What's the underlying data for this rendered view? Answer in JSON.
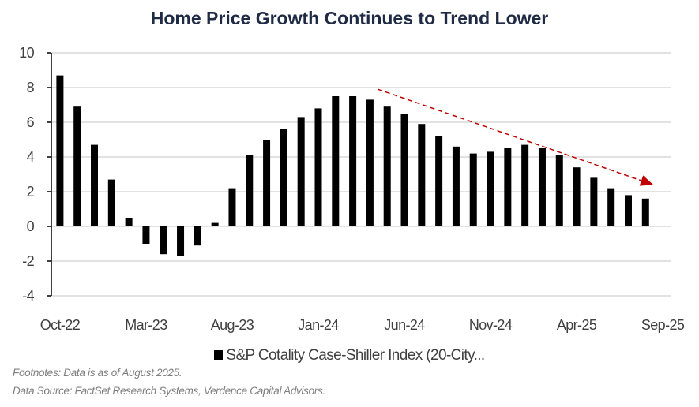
{
  "chart_data": {
    "type": "bar",
    "title": "Home Price Growth Continues to Trend Lower",
    "categories": [
      "Oct-22",
      "Nov-22",
      "Dec-22",
      "Jan-23",
      "Feb-23",
      "Mar-23",
      "Apr-23",
      "May-23",
      "Jun-23",
      "Jul-23",
      "Aug-23",
      "Sep-23",
      "Oct-23",
      "Nov-23",
      "Dec-23",
      "Jan-24",
      "Feb-24",
      "Mar-24",
      "Apr-24",
      "May-24",
      "Jun-24",
      "Jul-24",
      "Aug-24",
      "Sep-24",
      "Oct-24",
      "Nov-24",
      "Dec-24",
      "Jan-25",
      "Feb-25",
      "Mar-25",
      "Apr-25",
      "May-25",
      "Jun-25",
      "Jul-25",
      "Aug-25",
      "Sep-25"
    ],
    "x_tick_labels": [
      "Oct-22",
      "Mar-23",
      "Aug-23",
      "Jan-24",
      "Jun-24",
      "Nov-24",
      "Apr-25",
      "Sep-25"
    ],
    "series": [
      {
        "name": "S&P Cotality Case-Shiller Index (20-City...",
        "color": "#000000",
        "values": [
          8.7,
          6.9,
          4.7,
          2.7,
          0.5,
          -1.0,
          -1.6,
          -1.7,
          -1.1,
          0.2,
          2.2,
          4.1,
          5.0,
          5.6,
          6.3,
          6.8,
          7.5,
          7.5,
          7.3,
          6.9,
          6.5,
          5.9,
          5.2,
          4.6,
          4.2,
          4.3,
          4.5,
          4.7,
          4.5,
          4.1,
          3.4,
          2.8,
          2.2,
          1.8,
          1.6,
          null
        ]
      }
    ],
    "ylim": [
      -4,
      10
    ],
    "y_ticks": [
      10,
      8,
      6,
      4,
      2,
      0,
      -2,
      -4
    ],
    "grid": true,
    "legend_placement": "bottom",
    "annotation": {
      "type": "dashed-arrow",
      "color": "#c00000",
      "from_category": "Apr-24",
      "from_value": 7.9,
      "to_category": "Sep-25",
      "to_value": 2.4
    }
  },
  "footnotes": [
    "Footnotes: Data is as of August 2025.",
    "Data Source: FactSet Research Systems, Verdence Capital Advisors."
  ]
}
